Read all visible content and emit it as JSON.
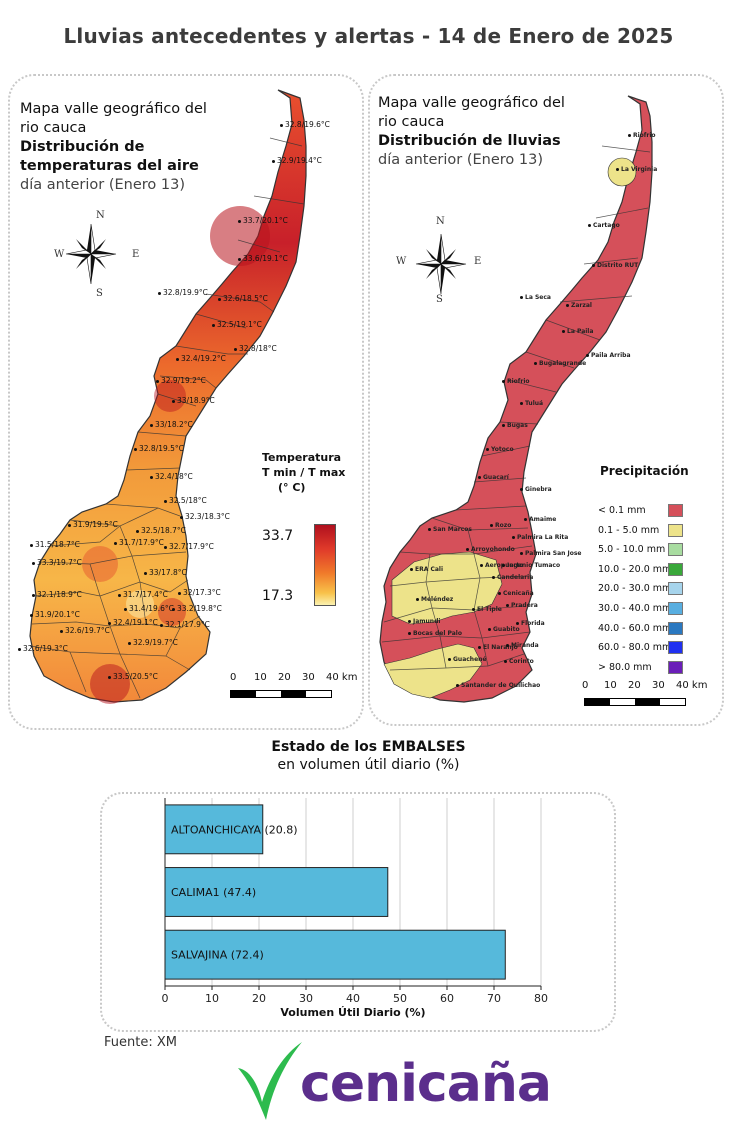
{
  "title": "Lluvias antecedentes y alertas - 14 de Enero de 2025",
  "temperature_map": {
    "title_line1": "Mapa valle geográfico del",
    "title_line2": "rio cauca",
    "title_line3": "Distribución de",
    "title_line4": "temperaturas del aire",
    "title_line5": "día anterior (Enero 13)",
    "legend_title_line1": "Temperatura",
    "legend_title_line2": "T min / T max",
    "legend_title_line3": "(° C)",
    "legend_max": "33.7",
    "legend_min": "17.3",
    "station_labels": [
      "32.8/19.6°C",
      "32.9/19.4°C",
      "33.7/20.1°C",
      "33.6/19.1°C",
      "32.8/19.9°C",
      "32.6/18.5°C",
      "32.5/19.1°C",
      "32.8/18°C",
      "32.4/19.2°C",
      "32.9/19.2°C",
      "33/18.9°C",
      "33/18.2°C",
      "32.8/19.5°C",
      "32.4/18°C",
      "32.5/18°C",
      "32.3/18.3°C",
      "31.9/19.5°C",
      "32.5/18.7°C",
      "31.5/18.7°C",
      "31.7/17.9°C",
      "32.7/17.9°C",
      "33.3/19.7°C",
      "33/17.8°C",
      "32.1/18.9°C",
      "31.7/17.4°C",
      "32/17.3°C",
      "31.4/19.6°C",
      "33.2/19.8°C",
      "31.9/20.1°C",
      "32.4/19.1°C",
      "32.1/17.9°C",
      "32.6/19.7°C",
      "32.9/19.7°C",
      "32.6/19.3°C",
      "33.5/20.5°C"
    ]
  },
  "rain_map": {
    "title_line1": "Mapa valle geográfico del",
    "title_line2": "rio cauca",
    "title_line3": "Distribución de lluvias",
    "title_line4": "día anterior (Enero  13)",
    "legend_title": "Precipitación",
    "legend_items": [
      {
        "label": "< 0.1 mm",
        "color": "#d5505a"
      },
      {
        "label": "0.1 - 5.0 mm",
        "color": "#ede38a"
      },
      {
        "label": "5.0 - 10.0 mm",
        "color": "#a8dca0"
      },
      {
        "label": "10.0 - 20.0 mm",
        "color": "#39a83a"
      },
      {
        "label": "20.0 - 30.0 mm",
        "color": "#a6d4ec"
      },
      {
        "label": "30.0 - 40.0 mm",
        "color": "#58aee0"
      },
      {
        "label": "40.0 - 60.0 mm",
        "color": "#2a78c0"
      },
      {
        "label": "60.0 - 80.0 mm",
        "color": "#2030f0"
      },
      {
        "label": "> 80.0 mm",
        "color": "#6a1eb8"
      }
    ],
    "station_labels": [
      "Riofrio",
      "La Virginia",
      "Cartago",
      "Distrito RUT",
      "La Seca",
      "Zarzal",
      "La Paila",
      "Paila Arriba",
      "Bugalagrande",
      "Riofrio",
      "Tuluá",
      "Bugas",
      "Yotoco",
      "Guacarí",
      "Ginebra",
      "San Marcos",
      "Amaime",
      "Palmira La Rita",
      "Palmira San Jose",
      "Arroyohondo",
      "Aeropuerto",
      "Candelaria",
      "Cenicaña",
      "Meléndez",
      "El Tiple",
      "Pradera",
      "Florida",
      "Jamundi",
      "Bocas del Palo",
      "El Naranjo",
      "Miranda",
      "Guachené",
      "Corinto",
      "Santander de Quilichao",
      "ERA Cali",
      "Rozo",
      "Ingenio Tumaco",
      "Guabito"
    ]
  },
  "compass": {
    "n": "N",
    "s": "S",
    "e": "E",
    "w": "W"
  },
  "scale_bar": {
    "labels": [
      "0",
      "10",
      "20",
      "30",
      "40 km"
    ]
  },
  "reservoirs": {
    "title_line1": "Estado de los EMBALSES",
    "title_line2": "en volumen útil diario (%)",
    "chart_data": {
      "type": "bar",
      "orientation": "horizontal",
      "categories": [
        "ALTOANCHICAYA (20.8)",
        "CALIMA1 (47.4)",
        "SALVAJINA (72.4)"
      ],
      "values": [
        20.8,
        47.4,
        72.4
      ],
      "xlabel": "Volumen Útil Diario (%)",
      "xlim": [
        0,
        80
      ],
      "xticks": [
        "0",
        "10",
        "20",
        "30",
        "40",
        "50",
        "60",
        "70",
        "80"
      ],
      "bar_color": "#56b9db",
      "grid": true
    }
  },
  "source": "Fuente: XM",
  "logo_text": "cenicaña",
  "colors": {
    "logo_green": "#2dbb4e",
    "logo_purple": "#5b2e8c"
  }
}
